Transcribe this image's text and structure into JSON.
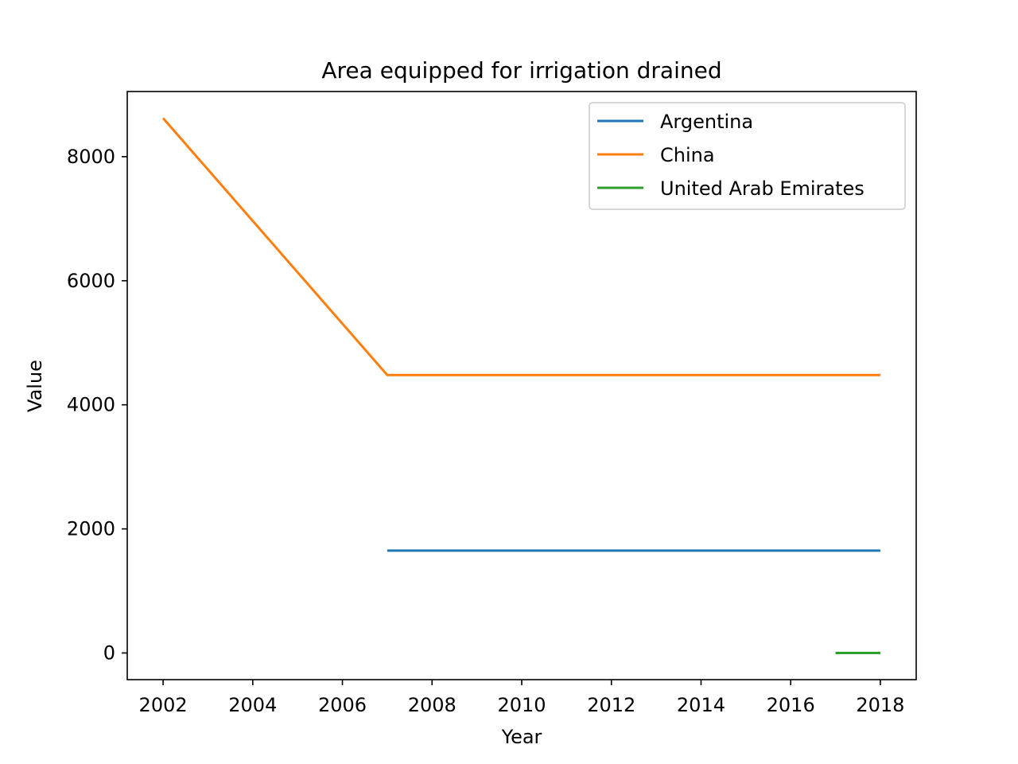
{
  "chart_data": {
    "type": "line",
    "title": "Area equipped for irrigation drained",
    "xlabel": "Year",
    "ylabel": "Value",
    "xlim": [
      2001.2,
      2018.8
    ],
    "ylim": [
      -430,
      9050
    ],
    "xticks": [
      2002,
      2004,
      2006,
      2008,
      2010,
      2012,
      2014,
      2016,
      2018
    ],
    "yticks": [
      0,
      2000,
      4000,
      6000,
      8000
    ],
    "grid": false,
    "legend_position": "top-right",
    "series": [
      {
        "name": "Argentina",
        "color": "#1f77b4",
        "x": [
          2007,
          2018
        ],
        "y": [
          1650,
          1650
        ]
      },
      {
        "name": "China",
        "color": "#ff7f0e",
        "x": [
          2002,
          2007,
          2018
        ],
        "y": [
          8620,
          4480,
          4480
        ]
      },
      {
        "name": "United Arab Emirates",
        "color": "#2ca02c",
        "x": [
          2017,
          2018
        ],
        "y": [
          0,
          0
        ]
      }
    ]
  }
}
